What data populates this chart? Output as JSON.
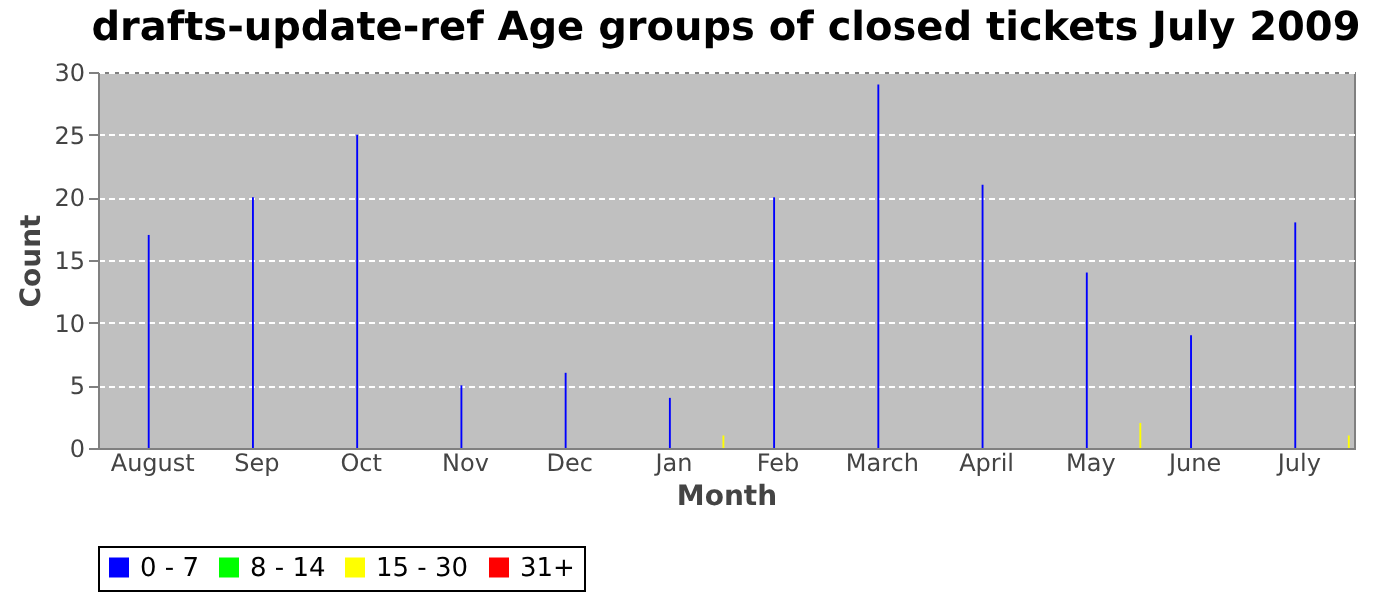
{
  "chart_data": {
    "type": "bar",
    "title": "drafts-update-ref Age groups of closed tickets July 2009",
    "xlabel": "Month",
    "ylabel": "Count",
    "categories": [
      "August",
      "Sep",
      "Oct",
      "Nov",
      "Dec",
      "Jan",
      "Feb",
      "March",
      "April",
      "May",
      "June",
      "July"
    ],
    "series": [
      {
        "name": "0 - 7",
        "color": "#0000ff",
        "values": [
          17,
          20,
          25,
          5,
          6,
          4,
          20,
          29,
          21,
          14,
          9,
          18
        ]
      },
      {
        "name": "8 - 14",
        "color": "#00ff00",
        "values": [
          0,
          0,
          0,
          0,
          0,
          0,
          0,
          0,
          0,
          0,
          0,
          0
        ]
      },
      {
        "name": "15 - 30",
        "color": "#ffff00",
        "values": [
          0,
          0,
          0,
          0,
          0,
          1,
          0,
          0,
          0,
          2,
          0,
          1
        ]
      },
      {
        "name": "31+",
        "color": "#ff0000",
        "values": [
          0,
          0,
          0,
          0,
          0,
          0,
          0,
          0,
          0,
          0,
          0,
          0
        ]
      }
    ],
    "ylim": [
      0,
      30
    ],
    "yticks": [
      0,
      5,
      10,
      15,
      20,
      25,
      30
    ],
    "grid": "y",
    "legend": "bottom"
  }
}
